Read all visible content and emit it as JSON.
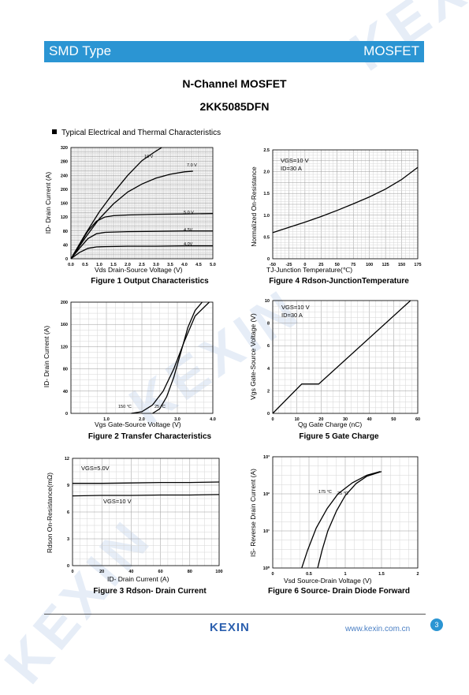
{
  "header": {
    "left": "SMD Type",
    "right": "MOSFET"
  },
  "title": {
    "line1": "N-Channel MOSFET",
    "line2": "2KK5085DFN"
  },
  "section": "Typical Electrical and Thermal Characteristics",
  "footer": {
    "logo": "KEXIN",
    "url": "www.kexin.com.cn",
    "page": "3"
  },
  "watermark": "KEXIN",
  "colors": {
    "header": "#2b95d3",
    "grid": "#b8b8b8",
    "curve": "#000000"
  },
  "figures": {
    "fig1": {
      "caption": "Figure 1 Output Characteristics",
      "xlabel": "Vds Drain-Source Voltage (V)",
      "ylabel": "ID- Drain Current (A)"
    },
    "fig2": {
      "caption": "Figure 2 Transfer Characteristics",
      "xlabel": "Vgs Gate-Source Voltage (V)",
      "ylabel": "ID- Drain Current (A)"
    },
    "fig3": {
      "caption": "Figure 3 Rdson- Drain Current",
      "xlabel": "ID- Drain Current (A)",
      "ylabel": "Rdson On-Resistance(mΩ)"
    },
    "fig4": {
      "caption": "Figure 4 Rdson-JunctionTemperature",
      "xlabel": "TJ-Junction Temperature(℃)",
      "ylabel": "Normalized On-Resistance"
    },
    "fig5": {
      "caption": "Figure 5 Gate Charge",
      "xlabel": "Qg Gate Charge (nC)",
      "ylabel": "Vgs Gate-Source Voltage (V)"
    },
    "fig6": {
      "caption": "Figure 6 Source- Drain Diode Forward",
      "xlabel": "Vsd Source-Drain Voltage (V)",
      "ylabel": "IS- Reverse Drain Current (A)"
    }
  },
  "chart_data": [
    {
      "id": "fig1",
      "type": "line",
      "xlim": [
        0,
        5
      ],
      "ylim": [
        0,
        320
      ],
      "grid": true,
      "xticks": [
        "0.0",
        "0.5",
        "1.0",
        "1.5",
        "2.0",
        "2.5",
        "3.0",
        "3.5",
        "4.0",
        "4.5",
        "5.0"
      ],
      "yticks": [
        "0",
        "40",
        "80",
        "120",
        "160",
        "200",
        "240",
        "280",
        "320"
      ],
      "series": [
        {
          "name": "10 V",
          "x": [
            0,
            0.5,
            1,
            1.5,
            2,
            2.5,
            3,
            3.2
          ],
          "y": [
            0,
            70,
            135,
            190,
            240,
            282,
            310,
            320
          ]
        },
        {
          "name": "7.0 V",
          "x": [
            0,
            0.5,
            1,
            1.5,
            2,
            2.5,
            3,
            3.5,
            4,
            4.3
          ],
          "y": [
            0,
            60,
            115,
            158,
            192,
            215,
            232,
            243,
            250,
            252
          ]
        },
        {
          "name": "5.0 V",
          "x": [
            0,
            0.3,
            0.6,
            0.9,
            1.2,
            1.5,
            2,
            3,
            4,
            5
          ],
          "y": [
            0,
            40,
            80,
            108,
            120,
            124,
            126,
            128,
            129,
            130
          ]
        },
        {
          "name": "4.5V",
          "x": [
            0,
            0.3,
            0.6,
            0.9,
            1.2,
            2,
            3,
            4,
            5
          ],
          "y": [
            0,
            30,
            58,
            72,
            76,
            78,
            79,
            80,
            80
          ]
        },
        {
          "name": "4.0V",
          "x": [
            0,
            0.3,
            0.6,
            0.9,
            1.2,
            2,
            3,
            4,
            5
          ],
          "y": [
            0,
            18,
            30,
            34,
            35,
            36,
            36,
            37,
            37
          ]
        }
      ]
    },
    {
      "id": "fig2",
      "type": "line",
      "xlim": [
        0,
        4
      ],
      "ylim": [
        0,
        200
      ],
      "grid": true,
      "xticks": [
        "",
        "1.0",
        "2.0",
        "3.0",
        "4.0"
      ],
      "yticks": [
        "0",
        "40",
        "80",
        "120",
        "160",
        "200"
      ],
      "series": [
        {
          "name": "150 °C",
          "x": [
            1.7,
            2.0,
            2.3,
            2.6,
            2.9,
            3.2,
            3.5,
            3.9
          ],
          "y": [
            0,
            3,
            15,
            40,
            80,
            130,
            175,
            200
          ]
        },
        {
          "name": "25 °C",
          "x": [
            2.3,
            2.5,
            2.7,
            2.9,
            3.1,
            3.3,
            3.5,
            3.7
          ],
          "y": [
            0,
            8,
            30,
            65,
            110,
            155,
            185,
            200
          ]
        }
      ]
    },
    {
      "id": "fig3",
      "type": "line",
      "xlim": [
        0,
        100
      ],
      "ylim": [
        0,
        12
      ],
      "grid": true,
      "xticks": [
        "0",
        "20",
        "40",
        "60",
        "80",
        "100"
      ],
      "yticks": [
        "0",
        "3",
        "6",
        "9",
        "12"
      ],
      "annotations": [
        "VGS=5.0V",
        "VGS=10 V"
      ],
      "series": [
        {
          "name": "VGS=5.0V",
          "x": [
            0,
            20,
            40,
            60,
            80,
            100
          ],
          "y": [
            9.2,
            9.2,
            9.25,
            9.3,
            9.3,
            9.35
          ]
        },
        {
          "name": "VGS=10 V",
          "x": [
            0,
            20,
            40,
            60,
            80,
            100
          ],
          "y": [
            7.8,
            7.85,
            7.85,
            7.9,
            7.9,
            7.95
          ]
        }
      ]
    },
    {
      "id": "fig4",
      "type": "line",
      "xlim": [
        -50,
        175
      ],
      "ylim": [
        0,
        2.5
      ],
      "grid": true,
      "xticks": [
        "-50",
        "-25",
        "0",
        "25",
        "50",
        "75",
        "100",
        "125",
        "150",
        "175"
      ],
      "yticks": [
        "0",
        "0.5",
        "1.0",
        "1.5",
        "2.0",
        "2.5"
      ],
      "annotations": [
        "VGS=10 V",
        "ID=30 A"
      ],
      "series": [
        {
          "name": "",
          "x": [
            -50,
            -25,
            0,
            25,
            50,
            75,
            100,
            125,
            150,
            175
          ],
          "y": [
            0.6,
            0.72,
            0.84,
            0.97,
            1.11,
            1.26,
            1.42,
            1.6,
            1.82,
            2.1
          ]
        }
      ]
    },
    {
      "id": "fig5",
      "type": "line",
      "xlim": [
        0,
        60
      ],
      "ylim": [
        0,
        10
      ],
      "grid": true,
      "xticks": [
        "0",
        "10",
        "20",
        "30",
        "40",
        "50",
        "60"
      ],
      "yticks": [
        "0",
        "2",
        "4",
        "6",
        "8",
        "10"
      ],
      "annotations": [
        "VGS=10 V",
        "ID=30 A"
      ],
      "series": [
        {
          "name": "",
          "x": [
            0,
            12,
            19,
            57
          ],
          "y": [
            0,
            2.6,
            2.6,
            10
          ]
        }
      ]
    },
    {
      "id": "fig6",
      "type": "line",
      "xlim": [
        0,
        2
      ],
      "ylim": [
        1,
        1000
      ],
      "log_y": true,
      "grid": true,
      "xticks": [
        "0",
        "0.5",
        "1",
        "1.5",
        "2"
      ],
      "yticks": [
        "10⁰",
        "10¹",
        "10²",
        "10³"
      ],
      "series": [
        {
          "name": "175 °C",
          "x": [
            0.4,
            0.48,
            0.6,
            0.75,
            0.9,
            1.1,
            1.3,
            1.48
          ],
          "y": [
            1,
            3,
            12,
            40,
            100,
            200,
            320,
            400
          ]
        },
        {
          "name": "25 °C",
          "x": [
            0.62,
            0.68,
            0.76,
            0.88,
            1.0,
            1.15,
            1.3,
            1.5
          ],
          "y": [
            1,
            3,
            10,
            35,
            90,
            190,
            300,
            400
          ]
        }
      ]
    }
  ]
}
